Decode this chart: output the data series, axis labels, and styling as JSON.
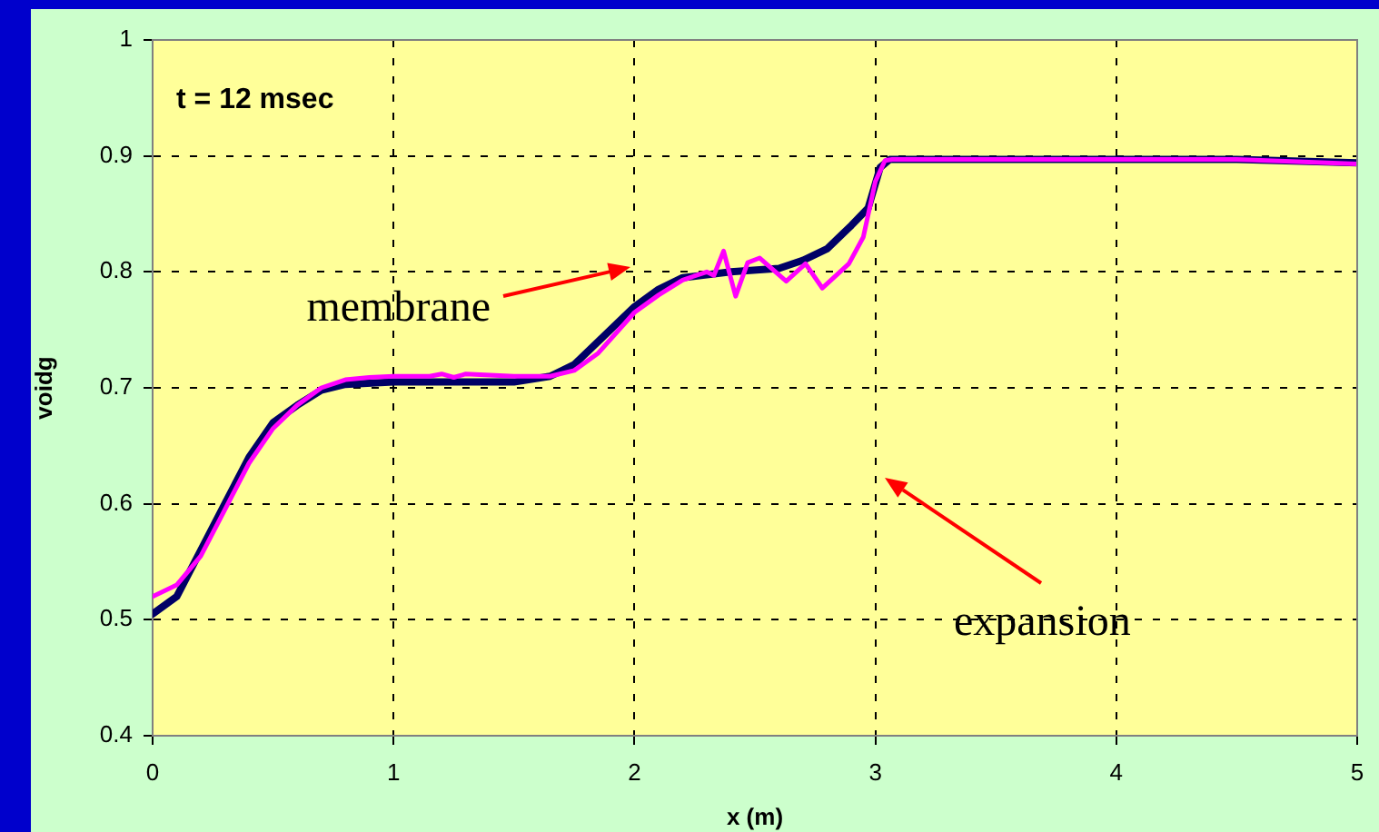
{
  "chart_data": {
    "type": "line",
    "xlabel": "x (m)",
    "ylabel": "voidg",
    "annotations": [
      "t = 12 msec",
      "membrane",
      "expansion"
    ],
    "xlim": [
      0,
      5
    ],
    "xticks": [
      0,
      1,
      2,
      3,
      4,
      5
    ],
    "ylim": [
      0.4,
      1
    ],
    "yticks": [
      0.4,
      0.5,
      0.6,
      0.7,
      0.8,
      0.9,
      1
    ],
    "grid": true,
    "legend": false,
    "marker": "none",
    "series": [
      {
        "color": "#000066",
        "x": [
          0,
          0.1,
          0.2,
          0.3,
          0.4,
          0.5,
          0.6,
          0.7,
          0.8,
          1.0,
          1.2,
          1.5,
          1.65,
          1.75,
          1.85,
          2.0,
          2.1,
          2.2,
          2.4,
          2.6,
          2.7,
          2.8,
          2.9,
          2.97,
          3.02,
          3.06,
          3.5,
          4.5,
          5.0
        ],
        "values": [
          0.505,
          0.52,
          0.56,
          0.6,
          0.64,
          0.67,
          0.685,
          0.698,
          0.703,
          0.705,
          0.705,
          0.705,
          0.71,
          0.72,
          0.74,
          0.77,
          0.785,
          0.795,
          0.8,
          0.803,
          0.81,
          0.82,
          0.84,
          0.855,
          0.89,
          0.897,
          0.897,
          0.897,
          0.894
        ]
      },
      {
        "color": "#ff00ff",
        "x": [
          0,
          0.1,
          0.2,
          0.3,
          0.4,
          0.5,
          0.6,
          0.7,
          0.8,
          0.9,
          1.0,
          1.15,
          1.2,
          1.25,
          1.3,
          1.5,
          1.65,
          1.75,
          1.85,
          2.0,
          2.1,
          2.2,
          2.3,
          2.33,
          2.37,
          2.42,
          2.47,
          2.52,
          2.63,
          2.71,
          2.78,
          2.89,
          2.95,
          3.0,
          3.04,
          3.07,
          4.0,
          4.5,
          5.0
        ],
        "values": [
          0.52,
          0.53,
          0.555,
          0.595,
          0.635,
          0.665,
          0.685,
          0.7,
          0.707,
          0.709,
          0.71,
          0.71,
          0.712,
          0.709,
          0.712,
          0.71,
          0.71,
          0.715,
          0.73,
          0.765,
          0.78,
          0.793,
          0.8,
          0.797,
          0.818,
          0.779,
          0.808,
          0.812,
          0.792,
          0.807,
          0.786,
          0.807,
          0.83,
          0.878,
          0.896,
          0.897,
          0.897,
          0.897,
          0.893
        ]
      }
    ]
  }
}
